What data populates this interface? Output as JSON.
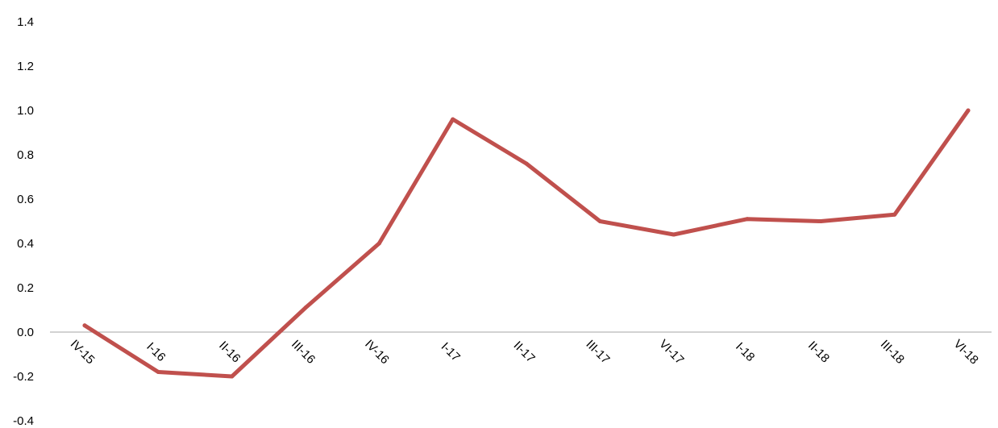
{
  "chart_data": {
    "type": "line",
    "categories": [
      "IV-15",
      "I-16",
      "II-16",
      "III-16",
      "IV-16",
      "I-17",
      "II-17",
      "III-17",
      "VI-17",
      "I-18",
      "II-18",
      "III-18",
      "VI-18"
    ],
    "series": [
      {
        "values": [
          0.03,
          -0.18,
          -0.2,
          0.11,
          0.4,
          0.96,
          0.76,
          0.5,
          0.44,
          0.51,
          0.5,
          0.53,
          1.0
        ],
        "color": "#c0504d"
      }
    ],
    "ylim": [
      -0.4,
      1.4
    ],
    "yticks": [
      "-0.4",
      "-0.2",
      "0.0",
      "0.2",
      "0.4",
      "0.6",
      "0.8",
      "1.0",
      "1.2",
      "1.4"
    ],
    "grid": false,
    "legend": "none"
  }
}
